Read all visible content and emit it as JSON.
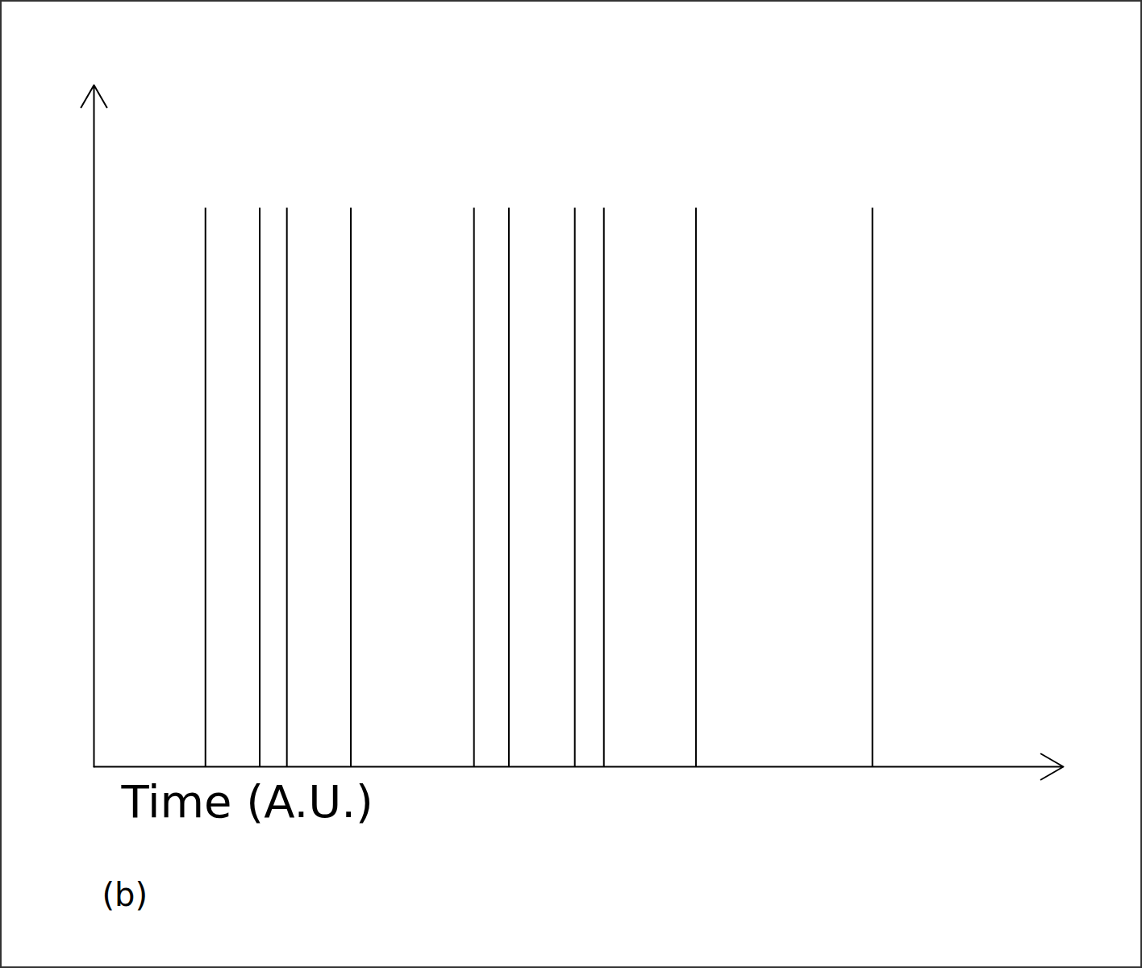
{
  "chart_data": {
    "type": "spike",
    "x_label": "Time (A.U.)",
    "annotations": [
      "(b)"
    ],
    "x": [
      11.5,
      17.1,
      19.9,
      26.5,
      39.2,
      42.8,
      49.6,
      52.6,
      62.1,
      80.3
    ],
    "values": [
      1,
      1,
      1,
      1,
      1,
      1,
      1,
      1,
      1,
      1
    ],
    "xlim": [
      0,
      100
    ],
    "ylim": [
      0,
      1.22
    ],
    "tick_labels": false,
    "color": "#000000"
  }
}
